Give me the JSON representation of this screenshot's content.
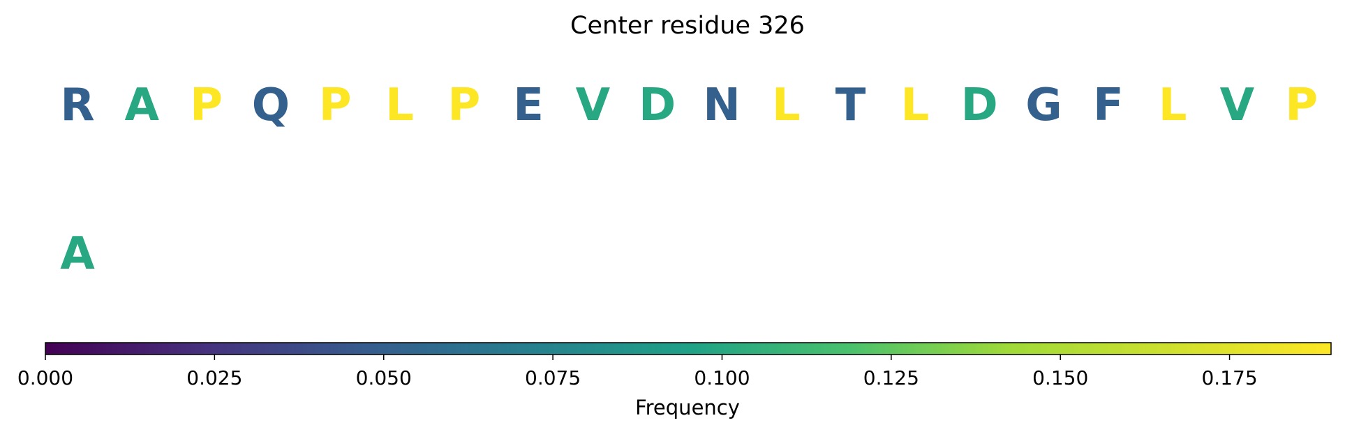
{
  "chart_data": {
    "type": "sequence-logo",
    "title": "Center residue 326",
    "rows": [
      {
        "residues": [
          "R",
          "A",
          "P",
          "Q",
          "P",
          "L",
          "P",
          "E",
          "V",
          "D",
          "N",
          "L",
          "T",
          "L",
          "D",
          "G",
          "F",
          "L",
          "V",
          "P"
        ],
        "frequencies": [
          0.05,
          0.1,
          0.19,
          0.05,
          0.19,
          0.19,
          0.19,
          0.05,
          0.1,
          0.1,
          0.05,
          0.19,
          0.05,
          0.19,
          0.1,
          0.05,
          0.05,
          0.19,
          0.1,
          0.19
        ]
      },
      {
        "residues": [
          "A"
        ],
        "frequencies": [
          0.1
        ]
      }
    ],
    "colorbar": {
      "colormap": "viridis",
      "range": [
        0,
        0.19
      ],
      "ticks": [
        0.0,
        0.025,
        0.05,
        0.075,
        0.1,
        0.125,
        0.15,
        0.175
      ],
      "tick_labels": [
        "0.000",
        "0.025",
        "0.050",
        "0.075",
        "0.100",
        "0.125",
        "0.150",
        "0.175"
      ],
      "label": "Frequency",
      "orientation": "horizontal",
      "position": "bottom"
    }
  }
}
